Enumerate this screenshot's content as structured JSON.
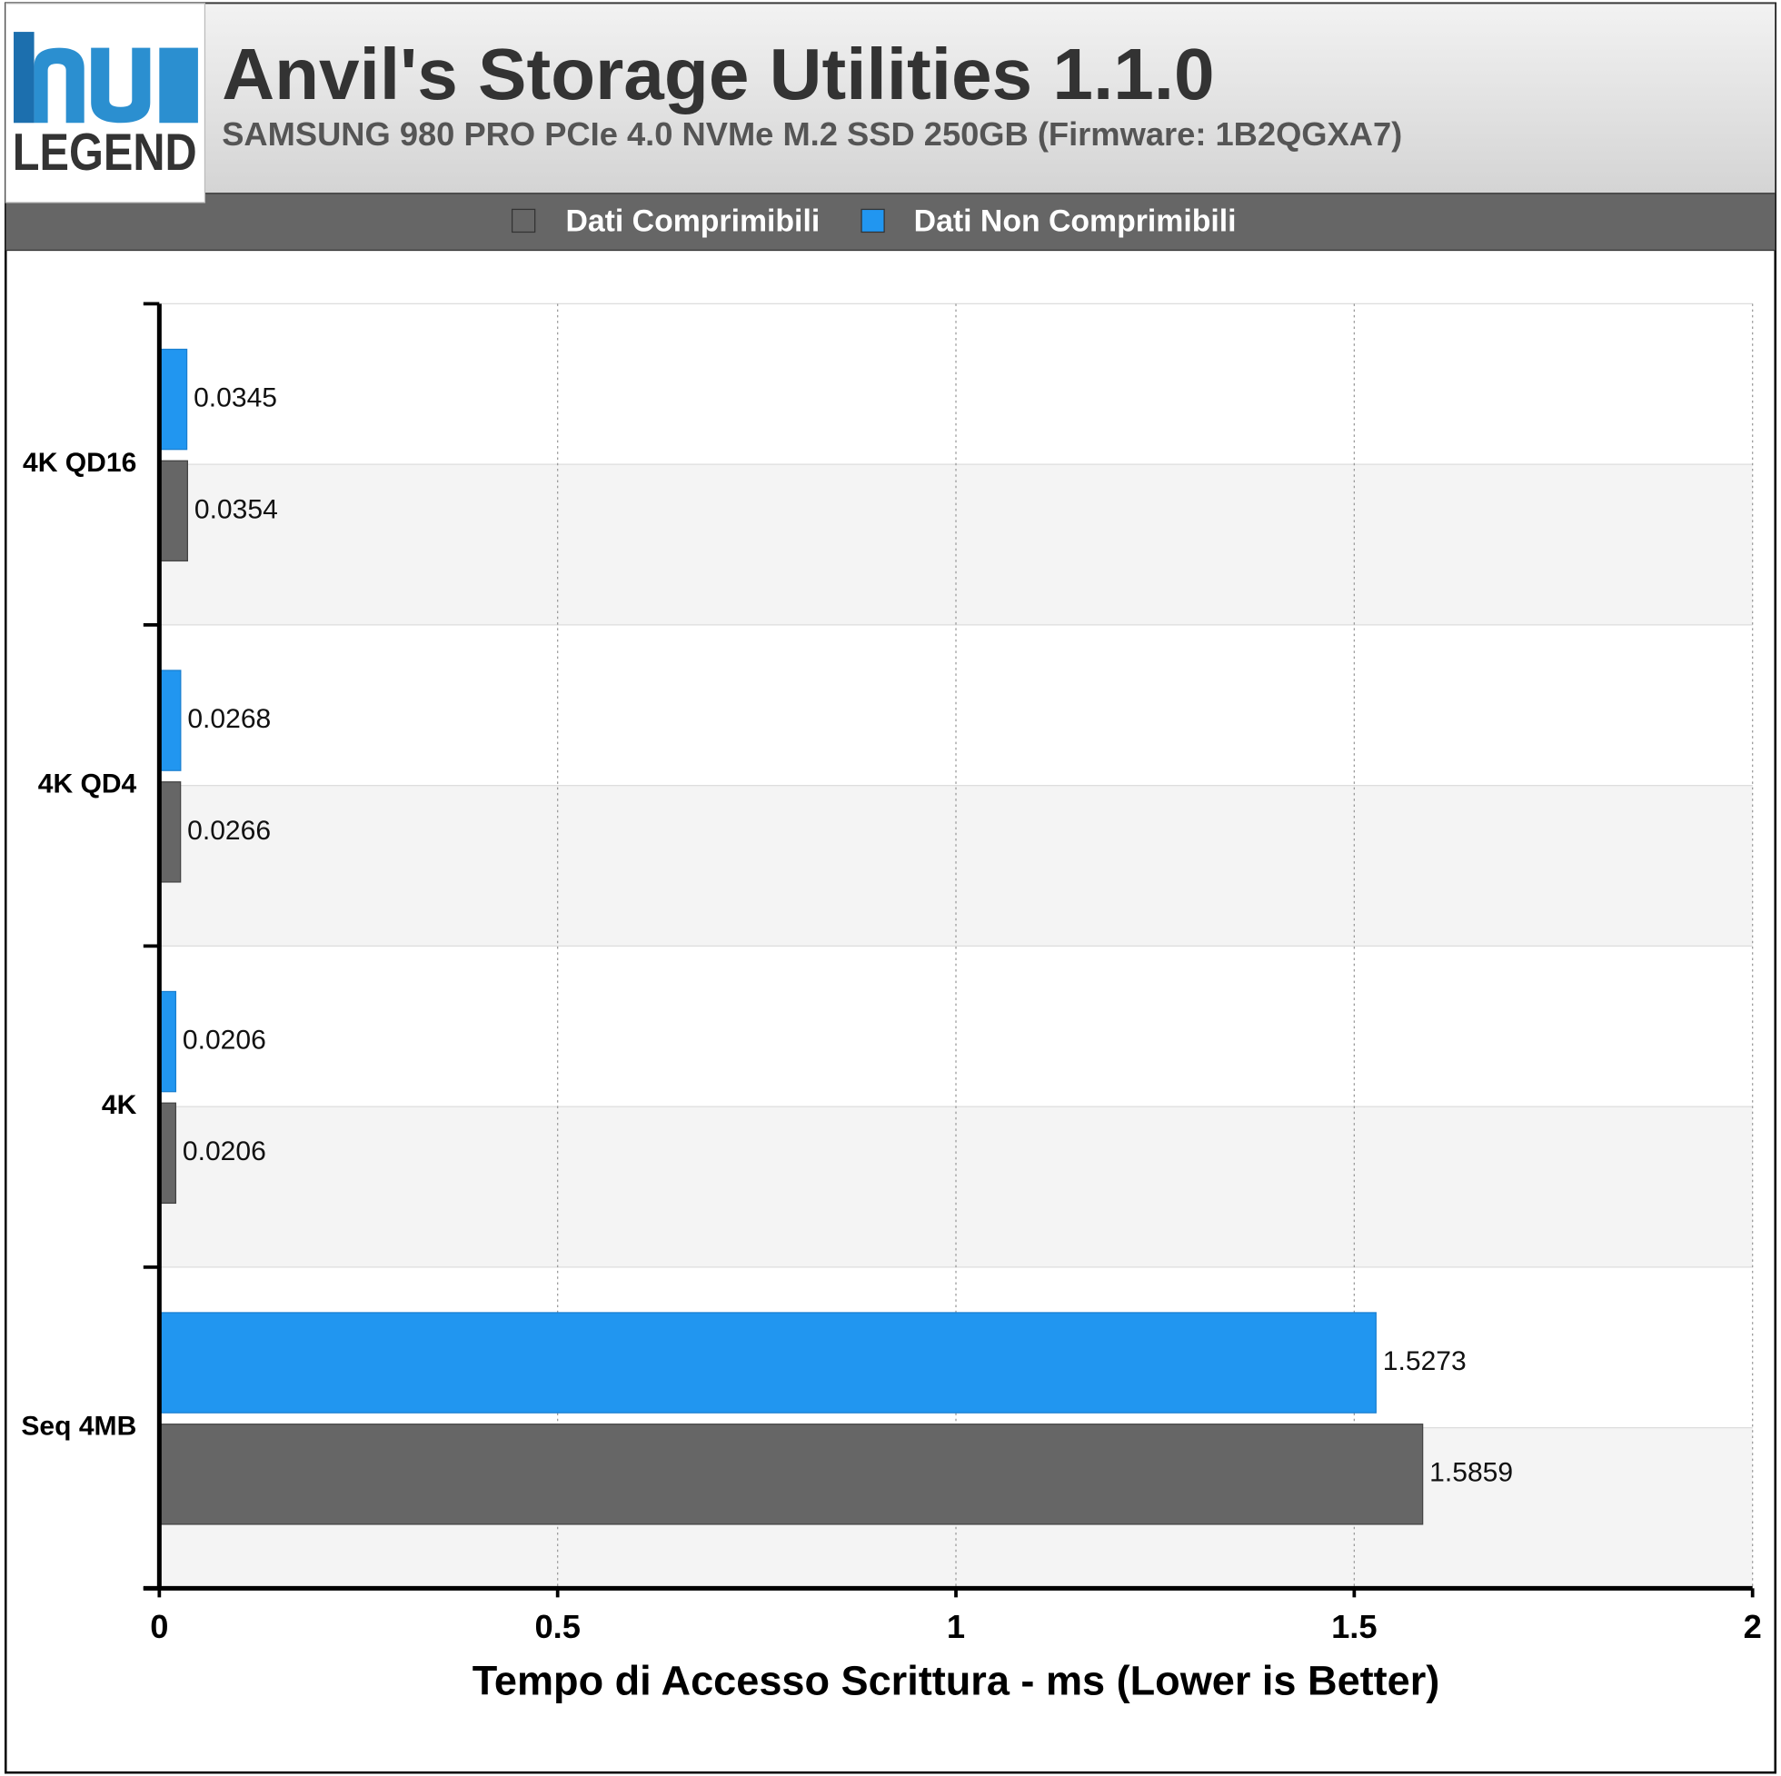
{
  "logo": "LEGEND",
  "chart_data": {
    "type": "hbar",
    "title": "Anvil's Storage Utilities 1.1.0",
    "subtitle": "SAMSUNG 980 PRO PCIe 4.0 NVMe M.2 SSD 250GB (Firmware: 1B2QGXA7)",
    "xlabel": "Tempo di Accesso Scrittura - ms (Lower is Better)",
    "categories": [
      "4K QD16",
      "4K QD4",
      "4K",
      "Seq 4MB"
    ],
    "series": [
      {
        "name": "Dati Comprimibili",
        "color": "#666666",
        "values": [
          0.0354,
          0.0266,
          0.0206,
          1.5859
        ]
      },
      {
        "name": "Dati Non Comprimibili",
        "color": "#2196f0",
        "values": [
          0.0345,
          0.0268,
          0.0206,
          1.5273
        ]
      }
    ],
    "xlim": [
      0,
      2
    ],
    "xticks": [
      0,
      0.5,
      1,
      1.5,
      2
    ],
    "grid": true,
    "legend": "top"
  }
}
